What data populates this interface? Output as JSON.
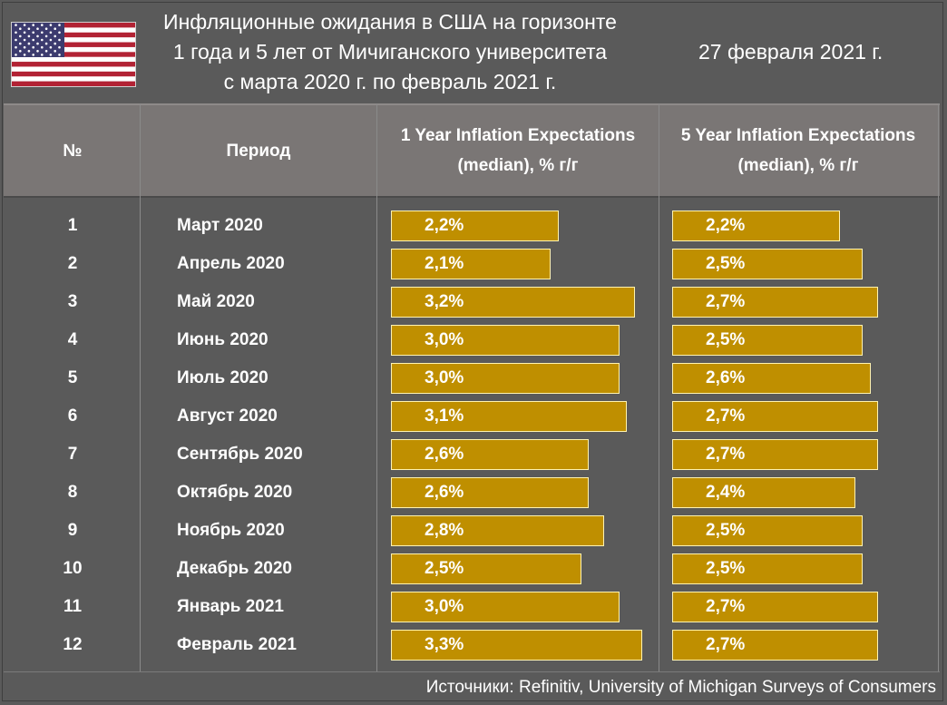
{
  "title_lines": [
    "Инфляционные ожидания в США на горизонте",
    "1 года и 5 лет от Мичиганского университета",
    "с марта 2020 г. по февраль 2021 г."
  ],
  "date": "27 февраля 2021 г.",
  "flag_icon": "us-flag",
  "columns": {
    "num": "№",
    "period": "Период",
    "one_year": [
      "1 Year Inflation Expectations",
      "(median), % г/г"
    ],
    "five_year": [
      "5 Year Inflation Expectations",
      "(median), % г/г"
    ]
  },
  "source": "Источники: Refinitiv, University of Michigan Surveys of Consumers",
  "colors": {
    "bar": "#bf8f00",
    "background": "#5a5a5a",
    "header": "#7a7675"
  },
  "chart_data": {
    "type": "table",
    "scale_max": 3.3,
    "rows": [
      {
        "num": "1",
        "period": "Март 2020",
        "one_year": 2.2,
        "one_year_label": "2,2%",
        "five_year": 2.2,
        "five_year_label": "2,2%"
      },
      {
        "num": "2",
        "period": "Апрель 2020",
        "one_year": 2.1,
        "one_year_label": "2,1%",
        "five_year": 2.5,
        "five_year_label": "2,5%"
      },
      {
        "num": "3",
        "period": "Май 2020",
        "one_year": 3.2,
        "one_year_label": "3,2%",
        "five_year": 2.7,
        "five_year_label": "2,7%"
      },
      {
        "num": "4",
        "period": "Июнь 2020",
        "one_year": 3.0,
        "one_year_label": "3,0%",
        "five_year": 2.5,
        "five_year_label": "2,5%"
      },
      {
        "num": "5",
        "period": "Июль 2020",
        "one_year": 3.0,
        "one_year_label": "3,0%",
        "five_year": 2.6,
        "five_year_label": "2,6%"
      },
      {
        "num": "6",
        "period": "Август 2020",
        "one_year": 3.1,
        "one_year_label": "3,1%",
        "five_year": 2.7,
        "five_year_label": "2,7%"
      },
      {
        "num": "7",
        "period": "Сентябрь 2020",
        "one_year": 2.6,
        "one_year_label": "2,6%",
        "five_year": 2.7,
        "five_year_label": "2,7%"
      },
      {
        "num": "8",
        "period": "Октябрь 2020",
        "one_year": 2.6,
        "one_year_label": "2,6%",
        "five_year": 2.4,
        "five_year_label": "2,4%"
      },
      {
        "num": "9",
        "period": "Ноябрь 2020",
        "one_year": 2.8,
        "one_year_label": "2,8%",
        "five_year": 2.5,
        "five_year_label": "2,5%"
      },
      {
        "num": "10",
        "period": "Декабрь 2020",
        "one_year": 2.5,
        "one_year_label": "2,5%",
        "five_year": 2.5,
        "five_year_label": "2,5%"
      },
      {
        "num": "11",
        "period": "Январь 2021",
        "one_year": 3.0,
        "one_year_label": "3,0%",
        "five_year": 2.7,
        "five_year_label": "2,7%"
      },
      {
        "num": "12",
        "period": "Февраль 2021",
        "one_year": 3.3,
        "one_year_label": "3,3%",
        "five_year": 2.7,
        "five_year_label": "2,7%"
      }
    ]
  }
}
